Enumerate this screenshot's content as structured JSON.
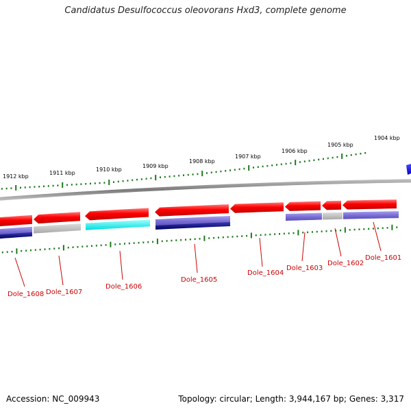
{
  "title": "Candidatus Desulfococcus oleovorans Hxd3, complete genome",
  "footer": {
    "accession": "Accession: NC_009943",
    "summary": "Topology: circular; Length: 3,944,167 bp; Genes: 3,317"
  },
  "colors": {
    "forward_gene": "#ff0000",
    "backbone": "#808080",
    "scale_ticks": "#1a7a1a",
    "gene_label": "#cc0000",
    "cds_purple": "#7b6fd6",
    "cds_navy": "#000080",
    "cds_gray": "#b8b8b8",
    "cds_cyan": "#00ffff",
    "cds_blue": "#0000ee"
  },
  "scale_labels": [
    "1912 kbp",
    "1911 kbp",
    "1910 kbp",
    "1909 kbp",
    "1908 kbp",
    "1907 kbp",
    "1906 kbp",
    "1905 kbp",
    "1904 kbp"
  ],
  "gene_labels": [
    "Dole_1608",
    "Dole_1607",
    "Dole_1606",
    "Dole_1605",
    "Dole_1604",
    "Dole_1603",
    "Dole_1602",
    "Dole_1601"
  ]
}
